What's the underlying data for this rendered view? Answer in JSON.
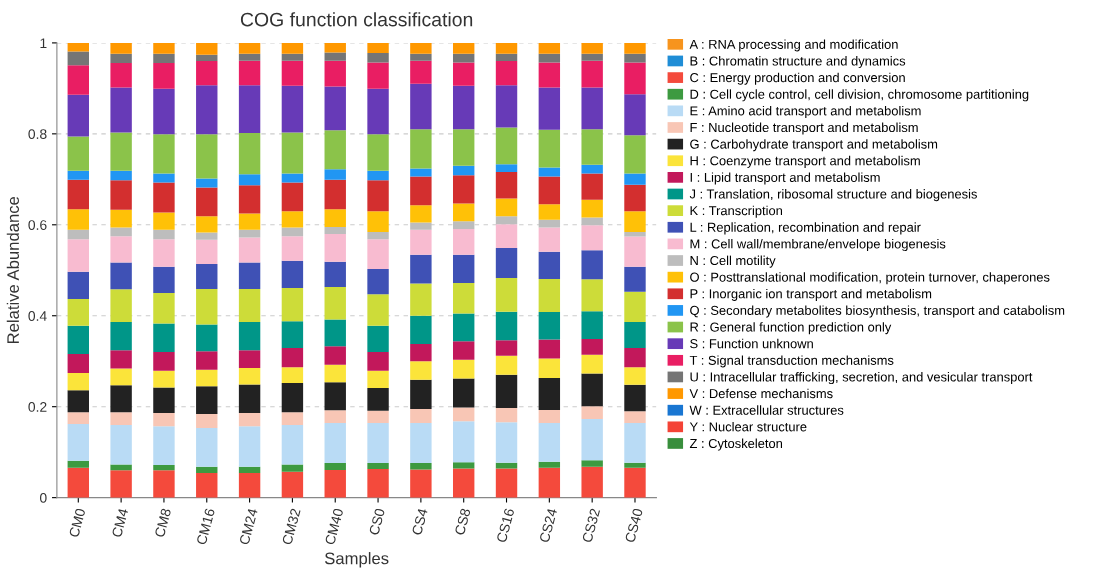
{
  "chart_data": {
    "type": "bar",
    "stacked": true,
    "title": "COG function classification",
    "xlabel": "Samples",
    "ylabel": "Relative Abundance",
    "categories": [
      "CM0",
      "CM4",
      "CM8",
      "CM16",
      "CM24",
      "CM32",
      "CM40",
      "CS0",
      "CS4",
      "CS8",
      "CS16",
      "CS24",
      "CS32",
      "CS40"
    ],
    "ylim": [
      0,
      1
    ],
    "yticks": [
      0,
      0.2,
      0.4,
      0.6,
      0.8,
      1
    ],
    "grid": "y",
    "legend": "right",
    "series": [
      {
        "name": "A : RNA processing and modification",
        "color": "#f7941d",
        "values": [
          0,
          0,
          0,
          0,
          0,
          0,
          0,
          0,
          0,
          0,
          0,
          0,
          0,
          0
        ]
      },
      {
        "name": "B : Chromatin structure and dynamics",
        "color": "#1f8dd6",
        "values": [
          0,
          0,
          0,
          0,
          0,
          0,
          0,
          0,
          0,
          0,
          0,
          0,
          0,
          0
        ]
      },
      {
        "name": "C : Energy production and conversion",
        "color": "#f44a3c",
        "values": [
          0.066,
          0.06,
          0.06,
          0.054,
          0.054,
          0.057,
          0.061,
          0.063,
          0.062,
          0.064,
          0.064,
          0.066,
          0.068,
          0.066
        ]
      },
      {
        "name": "D : Cell cycle control, cell division, chromosome partitioning",
        "color": "#3d9a40",
        "values": [
          0.015,
          0.013,
          0.012,
          0.014,
          0.014,
          0.016,
          0.015,
          0.013,
          0.014,
          0.014,
          0.013,
          0.013,
          0.014,
          0.011
        ]
      },
      {
        "name": "E : Amino acid transport and metabolism",
        "color": "#b9dbf5",
        "values": [
          0.081,
          0.087,
          0.085,
          0.085,
          0.089,
          0.087,
          0.088,
          0.088,
          0.088,
          0.09,
          0.089,
          0.085,
          0.091,
          0.087
        ]
      },
      {
        "name": "F : Nucleotide transport and metabolism",
        "color": "#f8c6b5",
        "values": [
          0.026,
          0.028,
          0.029,
          0.031,
          0.029,
          0.028,
          0.028,
          0.027,
          0.031,
          0.03,
          0.031,
          0.029,
          0.028,
          0.026
        ]
      },
      {
        "name": "G : Carbohydrate transport and metabolism",
        "color": "#222222",
        "values": [
          0.048,
          0.059,
          0.056,
          0.061,
          0.063,
          0.064,
          0.062,
          0.05,
          0.064,
          0.064,
          0.073,
          0.07,
          0.072,
          0.058
        ]
      },
      {
        "name": "H : Coenzyme transport and metabolism",
        "color": "#fbe43a",
        "values": [
          0.038,
          0.037,
          0.037,
          0.036,
          0.036,
          0.035,
          0.038,
          0.038,
          0.041,
          0.041,
          0.042,
          0.043,
          0.041,
          0.039
        ]
      },
      {
        "name": "I : Lipid transport and metabolism",
        "color": "#c2185b",
        "values": [
          0.042,
          0.04,
          0.041,
          0.041,
          0.039,
          0.042,
          0.041,
          0.041,
          0.038,
          0.041,
          0.034,
          0.042,
          0.035,
          0.042
        ]
      },
      {
        "name": "J : Translation, ribosomal structure and biogenesis",
        "color": "#009688",
        "values": [
          0.062,
          0.062,
          0.063,
          0.059,
          0.062,
          0.059,
          0.059,
          0.058,
          0.062,
          0.061,
          0.063,
          0.06,
          0.061,
          0.057
        ]
      },
      {
        "name": "K : Transcription",
        "color": "#cddc39",
        "values": [
          0.059,
          0.072,
          0.067,
          0.078,
          0.073,
          0.073,
          0.071,
          0.069,
          0.071,
          0.067,
          0.074,
          0.073,
          0.07,
          0.067
        ]
      },
      {
        "name": "L : Replication, recombination and repair",
        "color": "#3f51b5",
        "values": [
          0.06,
          0.059,
          0.058,
          0.055,
          0.058,
          0.06,
          0.056,
          0.056,
          0.063,
          0.062,
          0.066,
          0.06,
          0.064,
          0.055
        ]
      },
      {
        "name": "M : Cell wall/membrane/envelope biogenesis",
        "color": "#f8bbd0",
        "values": [
          0.071,
          0.058,
          0.06,
          0.053,
          0.055,
          0.054,
          0.061,
          0.065,
          0.055,
          0.057,
          0.052,
          0.053,
          0.055,
          0.066
        ]
      },
      {
        "name": "N : Cell motility",
        "color": "#bdbdbd",
        "values": [
          0.021,
          0.019,
          0.021,
          0.016,
          0.017,
          0.019,
          0.015,
          0.016,
          0.016,
          0.017,
          0.018,
          0.017,
          0.017,
          0.01
        ]
      },
      {
        "name": "O : Posttranslational modification, protein turnover, chaperones",
        "color": "#ffc107",
        "values": [
          0.045,
          0.039,
          0.038,
          0.036,
          0.036,
          0.036,
          0.039,
          0.046,
          0.038,
          0.039,
          0.039,
          0.034,
          0.039,
          0.046
        ]
      },
      {
        "name": "P : Inorganic ion transport and metabolism",
        "color": "#d32f2f",
        "values": [
          0.065,
          0.065,
          0.066,
          0.063,
          0.062,
          0.063,
          0.065,
          0.068,
          0.063,
          0.062,
          0.058,
          0.061,
          0.058,
          0.058
        ]
      },
      {
        "name": "Q : Secondary metabolites biosynthesis, transport and catabolism",
        "color": "#2196f3",
        "values": [
          0.02,
          0.021,
          0.02,
          0.02,
          0.024,
          0.02,
          0.023,
          0.021,
          0.018,
          0.021,
          0.017,
          0.02,
          0.019,
          0.025
        ]
      },
      {
        "name": "R : General function prediction only",
        "color": "#8bc34a",
        "values": [
          0.075,
          0.084,
          0.086,
          0.097,
          0.091,
          0.09,
          0.086,
          0.08,
          0.086,
          0.08,
          0.081,
          0.083,
          0.078,
          0.084
        ]
      },
      {
        "name": "S : Function unknown",
        "color": "#673ab7",
        "values": [
          0.092,
          0.099,
          0.1,
          0.108,
          0.105,
          0.103,
          0.096,
          0.1,
          0.1,
          0.096,
          0.093,
          0.093,
          0.092,
          0.09
        ]
      },
      {
        "name": "T : Signal transduction mechanisms",
        "color": "#e91e63",
        "values": [
          0.065,
          0.054,
          0.057,
          0.053,
          0.054,
          0.055,
          0.057,
          0.058,
          0.051,
          0.051,
          0.053,
          0.055,
          0.059,
          0.07
        ]
      },
      {
        "name": "U : Intracellular trafficking, secretion, and vesicular transport",
        "color": "#757575",
        "values": [
          0.03,
          0.02,
          0.02,
          0.014,
          0.015,
          0.015,
          0.018,
          0.021,
          0.015,
          0.019,
          0.016,
          0.019,
          0.015,
          0.019
        ]
      },
      {
        "name": "V : Defense mechanisms",
        "color": "#ff9800",
        "values": [
          0.019,
          0.024,
          0.024,
          0.026,
          0.024,
          0.024,
          0.021,
          0.022,
          0.024,
          0.024,
          0.024,
          0.024,
          0.024,
          0.024
        ]
      },
      {
        "name": "W : Extracellular structures",
        "color": "#1976d2",
        "values": [
          0,
          0,
          0,
          0,
          0,
          0,
          0,
          0,
          0,
          0,
          0,
          0,
          0,
          0
        ]
      },
      {
        "name": "Y : Nuclear structure",
        "color": "#f44336",
        "values": [
          0,
          0,
          0,
          0,
          0,
          0,
          0,
          0,
          0,
          0,
          0,
          0,
          0,
          0
        ]
      },
      {
        "name": "Z : Cytoskeleton",
        "color": "#388e3c",
        "values": [
          0,
          0,
          0,
          0,
          0,
          0,
          0,
          0,
          0,
          0,
          0,
          0,
          0,
          0
        ]
      }
    ]
  }
}
